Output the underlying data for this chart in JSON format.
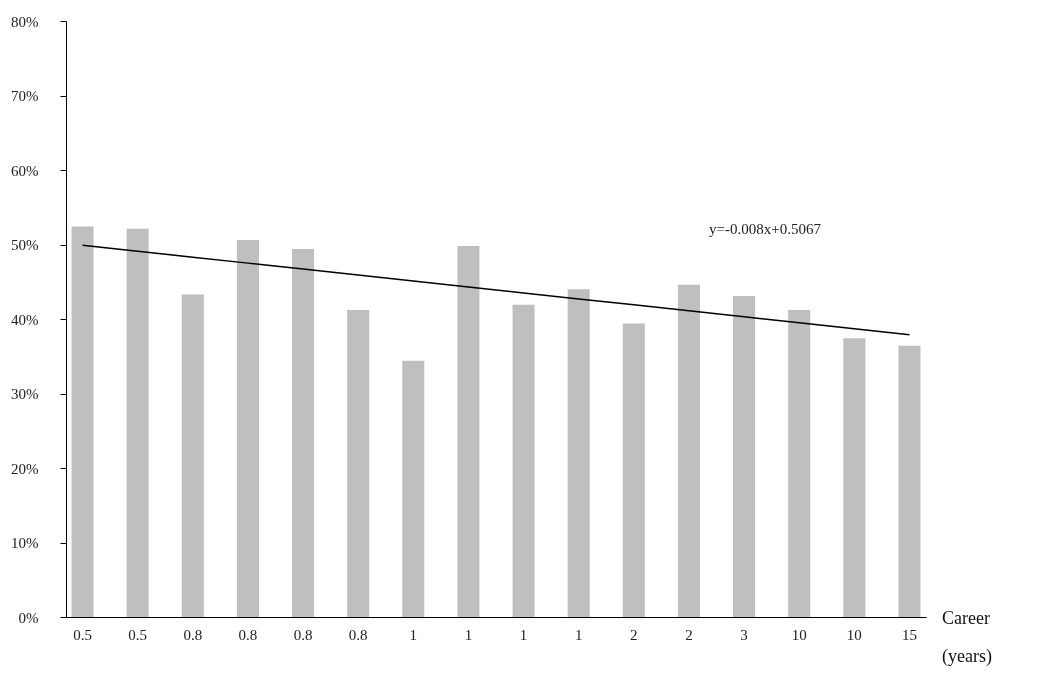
{
  "chart_data": {
    "type": "bar",
    "xlabel": "Career (years)",
    "categories": [
      "0.5",
      "0.5",
      "0.8",
      "0.8",
      "0.8",
      "0.8",
      "1",
      "1",
      "1",
      "1",
      "2",
      "2",
      "3",
      "10",
      "10",
      "15"
    ],
    "series": [
      {
        "color": "#bfbfbf",
        "values": [
          52.4,
          52.1,
          43.3,
          50.6,
          49.4,
          41.2,
          34.4,
          49.8,
          41.9,
          44.0,
          39.4,
          44.6,
          43.1,
          41.2,
          37.4,
          36.4
        ]
      },
      {
        "type": "line",
        "color": "#000000",
        "values": [
          49.9,
          49.1,
          48.3,
          47.5,
          46.7,
          45.9,
          45.1,
          44.3,
          43.5,
          42.7,
          41.9,
          41.1,
          40.3,
          39.5,
          38.7,
          37.9
        ]
      }
    ],
    "ylim": [
      0,
      80
    ],
    "yticks": [
      {
        "value": 0,
        "label": "0%"
      },
      {
        "value": 10,
        "label": "10%"
      },
      {
        "value": 20,
        "label": "20%"
      },
      {
        "value": 30,
        "label": "30%"
      },
      {
        "value": 40,
        "label": "40%"
      },
      {
        "value": 50,
        "label": "50%"
      },
      {
        "value": 60,
        "label": "60%"
      },
      {
        "value": 70,
        "label": "70%"
      },
      {
        "value": 80,
        "label": "80%"
      }
    ],
    "annotations": [
      "y=-0.008x+0.5067"
    ],
    "grid": false,
    "marker": "none",
    "line_style": "solid"
  }
}
